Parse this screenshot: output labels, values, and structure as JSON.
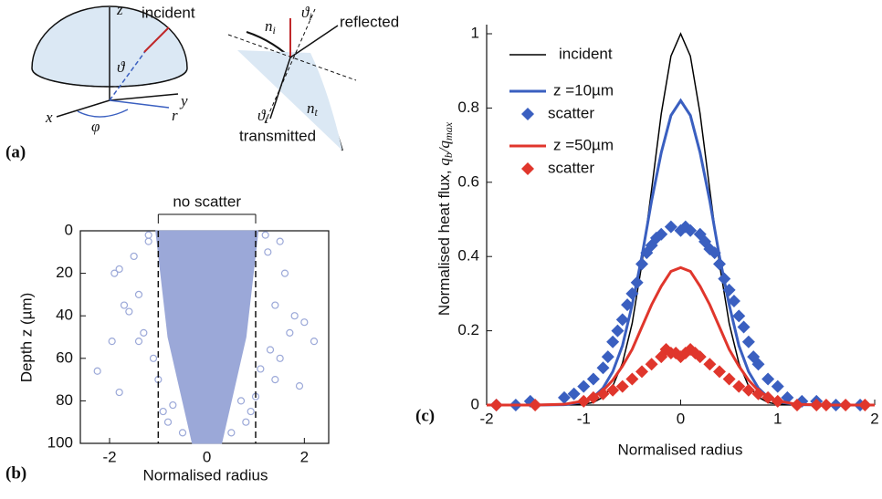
{
  "panel_a": {
    "label": "(a)",
    "z": "z",
    "incident": "incident",
    "theta": "ϑ",
    "y": "y",
    "x": "x",
    "phi": "φ",
    "r": "r",
    "n_i": [
      "n",
      "i"
    ],
    "theta_i": [
      "ϑ",
      "i"
    ],
    "reflected": "reflected",
    "theta_t": [
      "ϑ",
      "t"
    ],
    "n_t": [
      "n",
      "t"
    ],
    "transmitted": "transmitted"
  },
  "chart_data": [
    {
      "type": "scatter",
      "label": "(b)",
      "xlabel": "Normalised radius",
      "ylabel": "Depth z (µm)",
      "annotation": "no scatter",
      "reference_lines": [
        -1,
        1
      ],
      "xlim": [
        -2.6,
        2.5
      ],
      "ylim": [
        100,
        0
      ],
      "xticks": [
        -2,
        0,
        2
      ],
      "yticks": [
        0,
        20,
        40,
        60,
        80,
        100
      ],
      "region": {
        "y": [
          0,
          10,
          20,
          30,
          40,
          50,
          60,
          70,
          80,
          90,
          100
        ],
        "left": [
          -1.05,
          -1,
          -0.95,
          -0.9,
          -0.85,
          -0.8,
          -0.7,
          -0.6,
          -0.5,
          -0.4,
          -0.3
        ],
        "right": [
          1.05,
          1,
          0.95,
          0.9,
          0.85,
          0.8,
          0.7,
          0.6,
          0.5,
          0.4,
          0.3
        ]
      },
      "series": [
        {
          "color": "#9ba8d8",
          "x": [
            -1.9,
            -1.8,
            -1.7,
            -1.6,
            -1.95,
            -2.25,
            -1.4,
            -1.2,
            -1.3,
            -1.8,
            -1.1,
            -1.0,
            -0.9,
            -0.8,
            -1.2,
            1.2,
            1.5,
            1.6,
            1.4,
            1.8,
            2.0,
            2.2,
            1.9,
            1.5,
            1.3,
            1.1,
            1.0,
            0.9,
            0.8,
            1.25,
            1.7,
            -1.5,
            -0.5,
            0.5,
            -1.4,
            1.4,
            -0.7,
            0.7
          ],
          "values": [
            20,
            18,
            35,
            38,
            52,
            66,
            30,
            5,
            48,
            76,
            60,
            70,
            85,
            90,
            2,
            2,
            5,
            20,
            35,
            40,
            43,
            52,
            73,
            60,
            56,
            65,
            78,
            85,
            90,
            10,
            48,
            12,
            95,
            95,
            52,
            70,
            82,
            80
          ]
        }
      ]
    },
    {
      "type": "line",
      "label": "(c)",
      "xlabel": "Normalised radius",
      "ylabel": [
        "Normalised heat flux, ",
        "q",
        "b",
        "/",
        "q",
        "max"
      ],
      "xlim": [
        -2,
        2
      ],
      "ylim": [
        0,
        1
      ],
      "xticks": [
        -2,
        -1,
        0,
        1,
        2
      ],
      "yticks": [
        0,
        0.2,
        0.4,
        0.6,
        0.8,
        1
      ],
      "x": [
        -2,
        -1.5,
        -1.2,
        -1,
        -0.9,
        -0.8,
        -0.7,
        -0.6,
        -0.5,
        -0.4,
        -0.3,
        -0.2,
        -0.1,
        0,
        0.1,
        0.2,
        0.3,
        0.4,
        0.5,
        0.6,
        0.7,
        0.8,
        0.9,
        1,
        1.2,
        1.5,
        2
      ],
      "series": [
        {
          "name": "incident",
          "color": "#000000",
          "width": 1.5,
          "values": [
            0,
            0,
            0,
            0.002,
            0.007,
            0.021,
            0.051,
            0.113,
            0.22,
            0.38,
            0.58,
            0.785,
            0.94,
            1,
            0.94,
            0.785,
            0.58,
            0.38,
            0.22,
            0.113,
            0.051,
            0.021,
            0.007,
            0.002,
            0,
            0,
            0
          ]
        },
        {
          "name": "z =10µm",
          "color": "#3a5fc0",
          "width": 3,
          "values": [
            0,
            0,
            0.001,
            0.009,
            0.021,
            0.046,
            0.09,
            0.16,
            0.27,
            0.4,
            0.55,
            0.68,
            0.78,
            0.82,
            0.78,
            0.68,
            0.55,
            0.4,
            0.27,
            0.16,
            0.09,
            0.046,
            0.021,
            0.009,
            0.001,
            0,
            0
          ]
        },
        {
          "name": "scatter",
          "color": "#3a5fc0",
          "marker": "diamond",
          "x": [
            -1.9,
            -1.7,
            -1.55,
            -1.2,
            -1.1,
            -1.0,
            -0.9,
            -0.8,
            -0.75,
            -0.7,
            -0.65,
            -0.6,
            -0.55,
            -0.5,
            -0.45,
            -0.4,
            -0.35,
            -0.3,
            -0.25,
            -0.2,
            -0.1,
            0,
            0.05,
            0.1,
            0.2,
            0.25,
            0.3,
            0.35,
            0.4,
            0.45,
            0.5,
            0.55,
            0.6,
            0.65,
            0.7,
            0.75,
            0.8,
            0.9,
            1.0,
            1.1,
            1.25,
            1.4,
            1.6,
            1.85
          ],
          "values": [
            0,
            0,
            0.01,
            0.02,
            0.03,
            0.05,
            0.07,
            0.1,
            0.13,
            0.17,
            0.2,
            0.23,
            0.27,
            0.3,
            0.33,
            0.38,
            0.41,
            0.43,
            0.45,
            0.46,
            0.48,
            0.47,
            0.48,
            0.47,
            0.46,
            0.44,
            0.42,
            0.41,
            0.38,
            0.34,
            0.31,
            0.28,
            0.24,
            0.21,
            0.17,
            0.13,
            0.11,
            0.07,
            0.05,
            0.02,
            0.01,
            0.01,
            0,
            0
          ]
        },
        {
          "name": "z =50µm",
          "color": "#e0362c",
          "width": 3,
          "values": [
            0,
            0,
            0.002,
            0.011,
            0.022,
            0.039,
            0.067,
            0.105,
            0.15,
            0.21,
            0.27,
            0.32,
            0.36,
            0.37,
            0.36,
            0.32,
            0.27,
            0.21,
            0.15,
            0.105,
            0.067,
            0.039,
            0.022,
            0.011,
            0.002,
            0,
            0
          ]
        },
        {
          "name": "scatter",
          "color": "#e0362c",
          "marker": "diamond",
          "x": [
            -1.9,
            -1.5,
            -1.0,
            -0.9,
            -0.8,
            -0.7,
            -0.6,
            -0.5,
            -0.4,
            -0.3,
            -0.2,
            -0.15,
            -0.1,
            -0.05,
            0,
            0.05,
            0.1,
            0.15,
            0.2,
            0.3,
            0.4,
            0.5,
            0.6,
            0.7,
            0.8,
            0.9,
            1.0,
            1.2,
            1.4,
            1.5,
            1.7,
            1.9
          ],
          "values": [
            0,
            0,
            0.01,
            0.02,
            0.03,
            0.04,
            0.05,
            0.07,
            0.09,
            0.11,
            0.13,
            0.15,
            0.14,
            0.14,
            0.13,
            0.14,
            0.15,
            0.14,
            0.13,
            0.11,
            0.09,
            0.07,
            0.05,
            0.04,
            0.03,
            0.02,
            0.01,
            0,
            0,
            0,
            0,
            0
          ]
        }
      ]
    }
  ]
}
